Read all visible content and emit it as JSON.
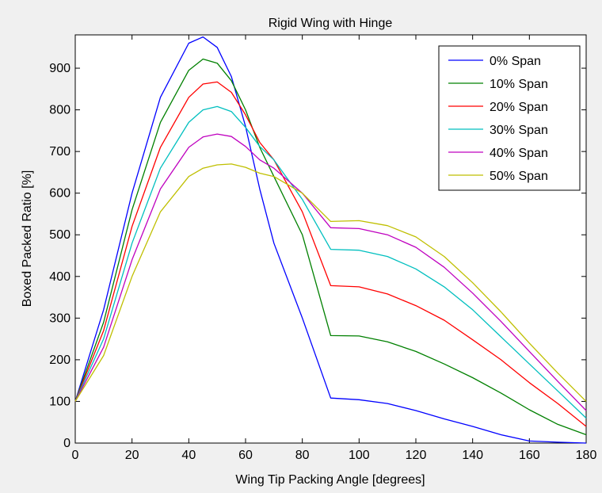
{
  "chart_data": {
    "type": "line",
    "title": "Rigid Wing with Hinge",
    "xlabel": "Wing Tip Packing Angle [degrees]",
    "ylabel": "Boxed Packed Ratio [%]",
    "xlim": [
      0,
      180
    ],
    "ylim": [
      0,
      980
    ],
    "xticks": [
      0,
      20,
      40,
      60,
      80,
      100,
      120,
      140,
      160,
      180
    ],
    "yticks": [
      0,
      100,
      200,
      300,
      400,
      500,
      600,
      700,
      800,
      900
    ],
    "xtick_labels": [
      "0",
      "20",
      "40",
      "60",
      "80",
      "100",
      "120",
      "140",
      "160",
      "180"
    ],
    "ytick_labels": [
      "0",
      "100",
      "200",
      "300",
      "400",
      "500",
      "600",
      "700",
      "800",
      "900"
    ],
    "grid": false,
    "legend_position": "top-right",
    "x": [
      0,
      10,
      20,
      30,
      40,
      45,
      50,
      55,
      60,
      65,
      70,
      80,
      90,
      100,
      110,
      120,
      130,
      140,
      150,
      160,
      170,
      180
    ],
    "series": [
      {
        "name": "0% Span",
        "color": "#0000ff",
        "values": [
          100,
          320,
          600,
          830,
          960,
          975,
          950,
          880,
          760,
          610,
          480,
          300,
          108,
          104,
          95,
          78,
          58,
          40,
          20,
          5,
          2,
          0
        ]
      },
      {
        "name": "10% Span",
        "color": "#008000",
        "values": [
          100,
          290,
          560,
          770,
          895,
          922,
          912,
          870,
          800,
          710,
          640,
          500,
          258,
          257,
          243,
          220,
          190,
          157,
          120,
          80,
          45,
          20
        ]
      },
      {
        "name": "20% Span",
        "color": "#ff0000",
        "values": [
          100,
          270,
          520,
          710,
          830,
          862,
          867,
          842,
          788,
          722,
          680,
          555,
          378,
          375,
          358,
          330,
          295,
          248,
          200,
          145,
          95,
          40
        ]
      },
      {
        "name": "30% Span",
        "color": "#00bfbf",
        "values": [
          100,
          250,
          480,
          660,
          770,
          800,
          808,
          796,
          758,
          712,
          680,
          585,
          465,
          463,
          448,
          418,
          375,
          320,
          255,
          190,
          125,
          60
        ]
      },
      {
        "name": "40% Span",
        "color": "#bf00bf",
        "values": [
          100,
          230,
          440,
          610,
          710,
          735,
          742,
          736,
          712,
          680,
          660,
          600,
          517,
          515,
          500,
          470,
          422,
          360,
          292,
          220,
          148,
          78
        ]
      },
      {
        "name": "50% Span",
        "color": "#bfbf00",
        "values": [
          100,
          210,
          400,
          555,
          640,
          660,
          668,
          670,
          662,
          648,
          640,
          600,
          532,
          534,
          522,
          495,
          448,
          385,
          315,
          240,
          168,
          100
        ]
      }
    ]
  }
}
